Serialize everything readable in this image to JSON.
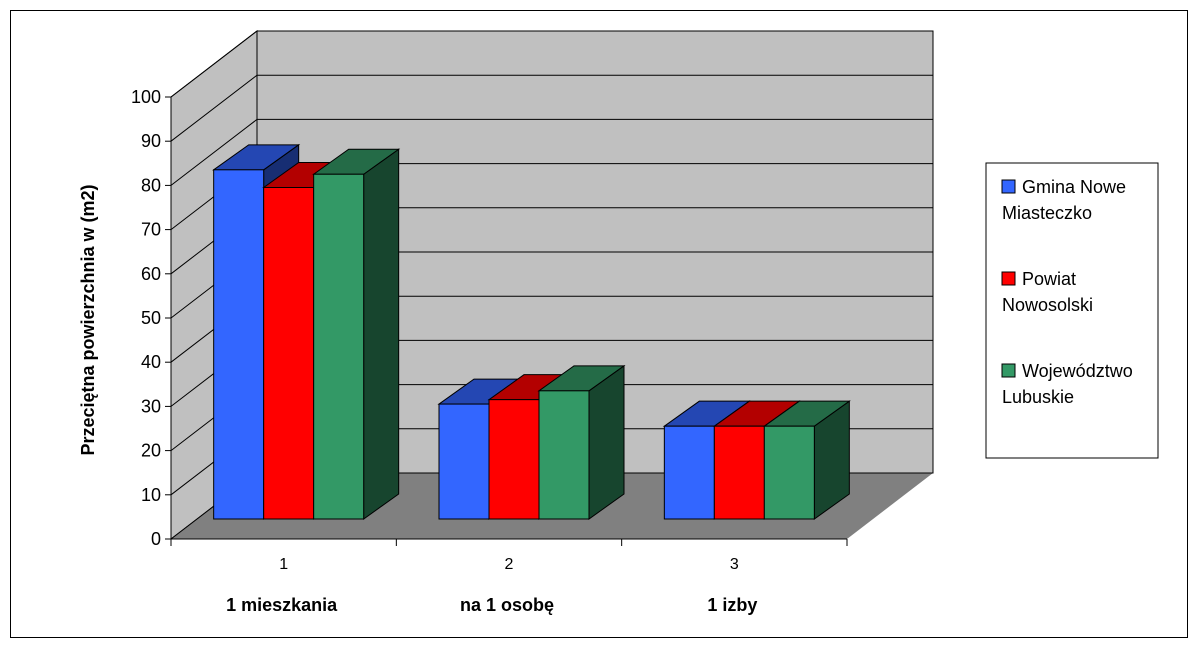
{
  "chart_data": {
    "type": "bar",
    "categories": [
      "1",
      "2",
      "3"
    ],
    "category_labels": [
      "1 mieszkania",
      "na 1 osobę",
      "1 izby"
    ],
    "ylabel": "Przeciętna powierzchnia w (m2)",
    "ylim": [
      0,
      100
    ],
    "yticks": [
      "0",
      "10",
      "20",
      "30",
      "40",
      "50",
      "60",
      "70",
      "80",
      "90",
      "100"
    ],
    "grid": true,
    "legend_position": "right",
    "three_d": true,
    "series": [
      {
        "name": "Gmina Nowe Miasteczko",
        "values": [
          79,
          26,
          21
        ],
        "color": "#3366ff"
      },
      {
        "name": "Powiat Nowosolski",
        "values": [
          75,
          27,
          21
        ],
        "color": "#ff0000"
      },
      {
        "name": "Województwo Lubuskie",
        "values": [
          78,
          29,
          21
        ],
        "color": "#339966"
      }
    ],
    "colors": {
      "wall": "#c0c0c0",
      "floor": "#808080"
    }
  }
}
